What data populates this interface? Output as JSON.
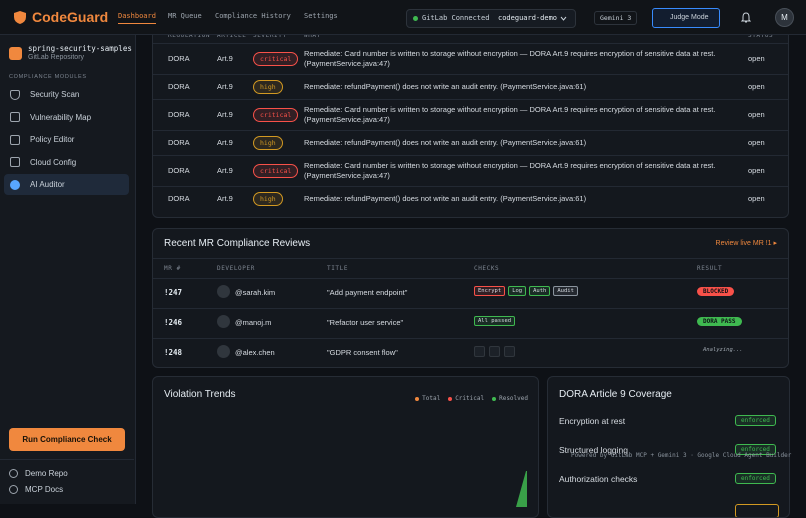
{
  "header": {
    "brand": "CodeGuard",
    "nav": [
      "Dashboard",
      "MR Queue",
      "Compliance History",
      "Settings"
    ],
    "connection": "GitLab Connected",
    "project": "codeguard-demo",
    "model": "Gemini 3",
    "judge_button": "Judge Mode",
    "avatar": "M"
  },
  "sidebar": {
    "repo_name": "spring-security-samples",
    "repo_type": "GitLab Repository",
    "section": "COMPLIANCE MODULES",
    "items": [
      "Security Scan",
      "Vulnerability Map",
      "Policy Editor",
      "Cloud Config",
      "AI Auditor"
    ],
    "run_button": "Run Compliance Check",
    "links": [
      "Demo Repo",
      "MCP Docs"
    ]
  },
  "findings": {
    "columns": [
      "REGULATION",
      "ARTICLE",
      "SEVERITY",
      "WHAT",
      "STATUS"
    ],
    "severity_colors": {
      "critical": "#f85149",
      "high": "#d29922"
    },
    "rows": [
      [
        "DORA",
        "Art.9",
        "critical",
        "Remediate: Card number is written to storage without encryption — DORA Art.9 requires encryption of sensitive data at rest. (PaymentService.java:47)",
        "open"
      ],
      [
        "DORA",
        "Art.9",
        "high",
        "Remediate: refundPayment() does not write an audit entry. (PaymentService.java:61)",
        "open"
      ],
      [
        "DORA",
        "Art.9",
        "critical",
        "Remediate: Card number is written to storage without encryption — DORA Art.9 requires encryption of sensitive data at rest. (PaymentService.java:47)",
        "open"
      ],
      [
        "DORA",
        "Art.9",
        "high",
        "Remediate: refundPayment() does not write an audit entry. (PaymentService.java:61)",
        "open"
      ],
      [
        "DORA",
        "Art.9",
        "critical",
        "Remediate: Card number is written to storage without encryption — DORA Art.9 requires encryption of sensitive data at rest. (PaymentService.java:47)",
        "open"
      ],
      [
        "DORA",
        "Art.9",
        "high",
        "Remediate: refundPayment() does not write an audit entry. (PaymentService.java:61)",
        "open"
      ]
    ]
  },
  "reviews": {
    "title": "Recent MR Compliance Reviews",
    "link": "Review live MR !1 ▸",
    "columns": [
      "MR #",
      "DEVELOPER",
      "TITLE",
      "CHECKS",
      "RESULT"
    ],
    "rows": [
      {
        "mr": "!247",
        "developer": "@sarah.kim",
        "title": "\"Add payment endpoint\"",
        "checks": [
          {
            "label": "Encrypt",
            "color": "#f85149"
          },
          {
            "label": "Log",
            "color": "#3fb950"
          },
          {
            "label": "Auth",
            "color": "#3fb950"
          },
          {
            "label": "Audit",
            "color": "#8b949e"
          }
        ],
        "result": "BLOCKED",
        "result_color": "#f85149"
      },
      {
        "mr": "!246",
        "developer": "@manoj.m",
        "title": "\"Refactor user service\"",
        "checks": [
          {
            "label": "All passed",
            "color": "#3fb950"
          }
        ],
        "result": "DORA PASS",
        "result_color": "#3fb950"
      },
      {
        "mr": "!248",
        "developer": "@alex.chen",
        "title": "\"GDPR consent flow\"",
        "checks": [],
        "result": "Analyzing...",
        "result_color": null
      }
    ]
  },
  "trends": {
    "title": "Violation Trends",
    "legend": [
      {
        "name": "Total",
        "color": "#f0883e"
      },
      {
        "name": "Critical",
        "color": "#f85149"
      },
      {
        "name": "Resolved",
        "color": "#3fb950"
      }
    ]
  },
  "coverage": {
    "title": "DORA Article 9 Coverage",
    "rows": [
      {
        "name": "Encryption at rest",
        "status": "enforced"
      },
      {
        "name": "Structured logging",
        "status": "enforced"
      },
      {
        "name": "Authorization checks",
        "status": "enforced"
      }
    ]
  },
  "footer_note": "Powered by GitLab MCP + Gemini 3 · Google Cloud Agent Builder"
}
